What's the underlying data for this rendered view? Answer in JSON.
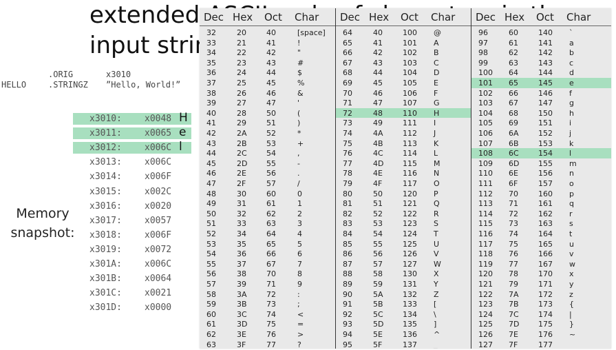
{
  "slide": {
    "title_line1": "extended ASCII code of characters in the",
    "title_line2": "input string"
  },
  "code": {
    "orig_directive": ".ORIG",
    "orig_address": "x3010",
    "label": "HELLO",
    "stringz_directive": ".STRINGZ",
    "string_literal": "”Hello, World!”"
  },
  "memory": {
    "label": "Memory snapshot:",
    "rows": [
      {
        "addr": "x3010:",
        "val": "x0048",
        "char": "H",
        "highlight": true
      },
      {
        "addr": "x3011:",
        "val": "x0065",
        "char": "e",
        "highlight": true
      },
      {
        "addr": "x3012:",
        "val": "x006C",
        "char": "l",
        "highlight": true
      },
      {
        "addr": "x3013:",
        "val": "x006C",
        "char": "",
        "highlight": false
      },
      {
        "addr": "x3014:",
        "val": "x006F",
        "char": "",
        "highlight": false
      },
      {
        "addr": "x3015:",
        "val": "x002C",
        "char": "",
        "highlight": false
      },
      {
        "addr": "x3016:",
        "val": "x0020",
        "char": "",
        "highlight": false
      },
      {
        "addr": "x3017:",
        "val": "x0057",
        "char": "",
        "highlight": false
      },
      {
        "addr": "x3018:",
        "val": "x006F",
        "char": "",
        "highlight": false
      },
      {
        "addr": "x3019:",
        "val": "x0072",
        "char": "",
        "highlight": false
      },
      {
        "addr": "x301A:",
        "val": "x006C",
        "char": "",
        "highlight": false
      },
      {
        "addr": "x301B:",
        "val": "x0064",
        "char": "",
        "highlight": false
      },
      {
        "addr": "x301C:",
        "val": "x0021",
        "char": "",
        "highlight": false
      },
      {
        "addr": "x301D:",
        "val": "x0000",
        "char": "",
        "highlight": false
      }
    ]
  },
  "ascii_table": {
    "headers": [
      "Dec",
      "Hex",
      "Oct",
      "Char"
    ],
    "highlight_color": "#a8dfbf",
    "columns": [
      [
        [
          "32",
          "20",
          "40",
          "[space]"
        ],
        [
          "33",
          "21",
          "41",
          "!"
        ],
        [
          "34",
          "22",
          "42",
          "\""
        ],
        [
          "35",
          "23",
          "43",
          "#"
        ],
        [
          "36",
          "24",
          "44",
          "$"
        ],
        [
          "37",
          "25",
          "45",
          "%"
        ],
        [
          "38",
          "26",
          "46",
          "&"
        ],
        [
          "39",
          "27",
          "47",
          "'"
        ],
        [
          "40",
          "28",
          "50",
          "("
        ],
        [
          "41",
          "29",
          "51",
          ")"
        ],
        [
          "42",
          "2A",
          "52",
          "*"
        ],
        [
          "43",
          "2B",
          "53",
          "+"
        ],
        [
          "44",
          "2C",
          "54",
          ","
        ],
        [
          "45",
          "2D",
          "55",
          "-"
        ],
        [
          "46",
          "2E",
          "56",
          "."
        ],
        [
          "47",
          "2F",
          "57",
          "/"
        ],
        [
          "48",
          "30",
          "60",
          "0"
        ],
        [
          "49",
          "31",
          "61",
          "1"
        ],
        [
          "50",
          "32",
          "62",
          "2"
        ],
        [
          "51",
          "33",
          "63",
          "3"
        ],
        [
          "52",
          "34",
          "64",
          "4"
        ],
        [
          "53",
          "35",
          "65",
          "5"
        ],
        [
          "54",
          "36",
          "66",
          "6"
        ],
        [
          "55",
          "37",
          "67",
          "7"
        ],
        [
          "56",
          "38",
          "70",
          "8"
        ],
        [
          "57",
          "39",
          "71",
          "9"
        ],
        [
          "58",
          "3A",
          "72",
          ":"
        ],
        [
          "59",
          "3B",
          "73",
          ";"
        ],
        [
          "60",
          "3C",
          "74",
          "<"
        ],
        [
          "61",
          "3D",
          "75",
          "="
        ],
        [
          "62",
          "3E",
          "76",
          ">"
        ],
        [
          "63",
          "3F",
          "77",
          "?"
        ]
      ],
      [
        [
          "64",
          "40",
          "100",
          "@"
        ],
        [
          "65",
          "41",
          "101",
          "A"
        ],
        [
          "66",
          "42",
          "102",
          "B"
        ],
        [
          "67",
          "43",
          "103",
          "C"
        ],
        [
          "68",
          "44",
          "104",
          "D"
        ],
        [
          "69",
          "45",
          "105",
          "E"
        ],
        [
          "70",
          "46",
          "106",
          "F"
        ],
        [
          "71",
          "47",
          "107",
          "G"
        ],
        [
          "72",
          "48",
          "110",
          "H"
        ],
        [
          "73",
          "49",
          "111",
          "I"
        ],
        [
          "74",
          "4A",
          "112",
          "J"
        ],
        [
          "75",
          "4B",
          "113",
          "K"
        ],
        [
          "76",
          "4C",
          "114",
          "L"
        ],
        [
          "77",
          "4D",
          "115",
          "M"
        ],
        [
          "78",
          "4E",
          "116",
          "N"
        ],
        [
          "79",
          "4F",
          "117",
          "O"
        ],
        [
          "80",
          "50",
          "120",
          "P"
        ],
        [
          "81",
          "51",
          "121",
          "Q"
        ],
        [
          "82",
          "52",
          "122",
          "R"
        ],
        [
          "83",
          "53",
          "123",
          "S"
        ],
        [
          "84",
          "54",
          "124",
          "T"
        ],
        [
          "85",
          "55",
          "125",
          "U"
        ],
        [
          "86",
          "56",
          "126",
          "V"
        ],
        [
          "87",
          "57",
          "127",
          "W"
        ],
        [
          "88",
          "58",
          "130",
          "X"
        ],
        [
          "89",
          "59",
          "131",
          "Y"
        ],
        [
          "90",
          "5A",
          "132",
          "Z"
        ],
        [
          "91",
          "5B",
          "133",
          "["
        ],
        [
          "92",
          "5C",
          "134",
          "\\"
        ],
        [
          "93",
          "5D",
          "135",
          "]"
        ],
        [
          "94",
          "5E",
          "136",
          "^"
        ],
        [
          "95",
          "5F",
          "137",
          "_"
        ]
      ],
      [
        [
          "96",
          "60",
          "140",
          "`"
        ],
        [
          "97",
          "61",
          "141",
          "a"
        ],
        [
          "98",
          "62",
          "142",
          "b"
        ],
        [
          "99",
          "63",
          "143",
          "c"
        ],
        [
          "100",
          "64",
          "144",
          "d"
        ],
        [
          "101",
          "65",
          "145",
          "e"
        ],
        [
          "102",
          "66",
          "146",
          "f"
        ],
        [
          "103",
          "67",
          "147",
          "g"
        ],
        [
          "104",
          "68",
          "150",
          "h"
        ],
        [
          "105",
          "69",
          "151",
          "i"
        ],
        [
          "106",
          "6A",
          "152",
          "j"
        ],
        [
          "107",
          "6B",
          "153",
          "k"
        ],
        [
          "108",
          "6C",
          "154",
          "l"
        ],
        [
          "109",
          "6D",
          "155",
          "m"
        ],
        [
          "110",
          "6E",
          "156",
          "n"
        ],
        [
          "111",
          "6F",
          "157",
          "o"
        ],
        [
          "112",
          "70",
          "160",
          "p"
        ],
        [
          "113",
          "71",
          "161",
          "q"
        ],
        [
          "114",
          "72",
          "162",
          "r"
        ],
        [
          "115",
          "73",
          "163",
          "s"
        ],
        [
          "116",
          "74",
          "164",
          "t"
        ],
        [
          "117",
          "75",
          "165",
          "u"
        ],
        [
          "118",
          "76",
          "166",
          "v"
        ],
        [
          "119",
          "77",
          "167",
          "w"
        ],
        [
          "120",
          "78",
          "170",
          "x"
        ],
        [
          "121",
          "79",
          "171",
          "y"
        ],
        [
          "122",
          "7A",
          "172",
          "z"
        ],
        [
          "123",
          "7B",
          "173",
          "{"
        ],
        [
          "124",
          "7C",
          "174",
          "|"
        ],
        [
          "125",
          "7D",
          "175",
          "}"
        ],
        [
          "126",
          "7E",
          "176",
          "~"
        ],
        [
          "127",
          "7F",
          "177",
          ""
        ]
      ]
    ],
    "highlighted": [
      "72",
      "101",
      "108"
    ]
  }
}
